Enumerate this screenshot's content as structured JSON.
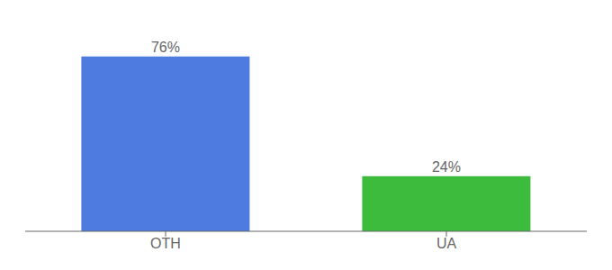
{
  "chart_data": {
    "type": "bar",
    "categories": [
      "OTH",
      "UA"
    ],
    "values": [
      76,
      24
    ],
    "colors": [
      "#4d7be0",
      "#3dbb3d"
    ],
    "value_labels": [
      "76%",
      "24%"
    ],
    "data_labels": true,
    "ylim": [
      0,
      88
    ],
    "grid": false,
    "tick_labels": "x"
  }
}
